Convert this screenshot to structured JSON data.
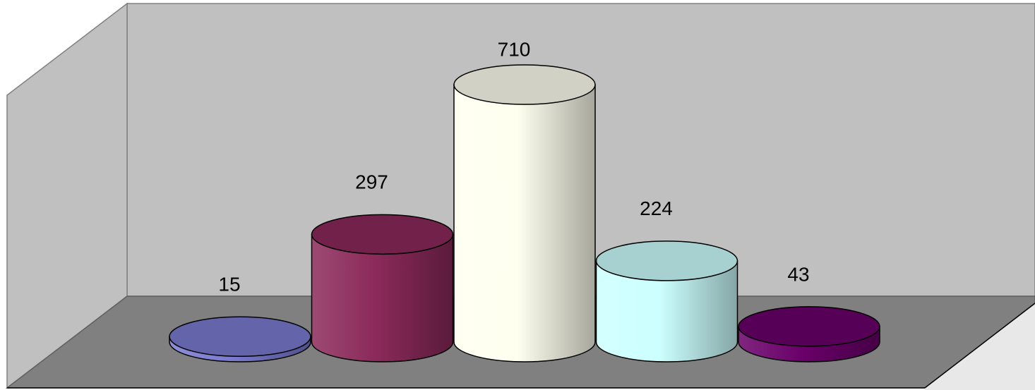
{
  "chart_data": {
    "type": "bar3d",
    "categories": [
      null,
      null,
      null,
      null,
      null
    ],
    "values": [
      15,
      297,
      710,
      224,
      43
    ],
    "colors": [
      "#7a7ad0",
      "#8b2a5a",
      "#fffff0",
      "#ccffff",
      "#6a006a"
    ]
  }
}
